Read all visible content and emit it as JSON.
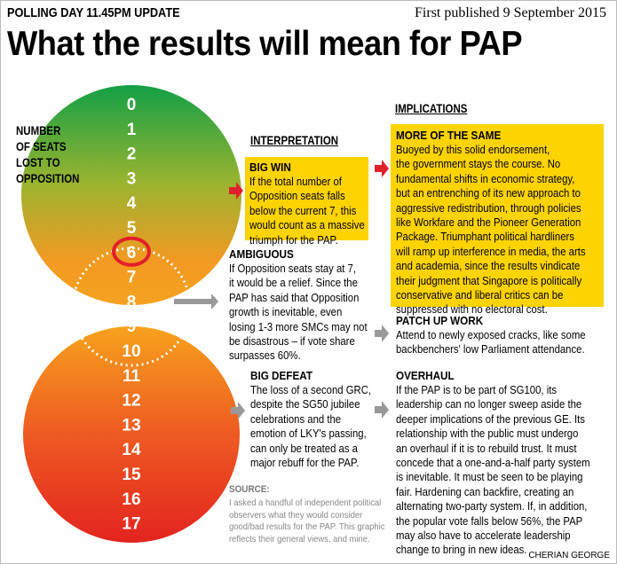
{
  "header": {
    "kicker": "POLLING DAY  11.45PM  UPDATE",
    "date": "First published 9 September 2015",
    "title": "What the results will mean for PAP"
  },
  "axis_label": [
    "NUMBER",
    "OF SEATS",
    "LOST TO",
    "OPPOSITION"
  ],
  "seats": [
    0,
    1,
    2,
    3,
    4,
    5,
    6,
    7,
    8,
    9,
    10,
    11,
    12,
    13,
    14,
    15,
    16,
    17
  ],
  "highlighted_seat": 6,
  "interpretation": {
    "heading": "INTERPRETATION",
    "items": [
      {
        "title": "BIG WIN",
        "lines": [
          "If the total number of",
          "Opposition seats falls",
          "below the current 7, this",
          "would count as a massive",
          "triumph for the PAP."
        ]
      },
      {
        "title": "AMBIGUOUS",
        "lines": [
          "If Opposition seats stay at 7,",
          "it would be a relief. Since the",
          "PAP has said that Opposition",
          "growth is inevitable, even",
          "losing 1-3 more SMCs may not",
          "be disastrous – if vote share",
          "surpasses 60%."
        ]
      },
      {
        "title": "BIG DEFEAT",
        "lines": [
          "The loss of a second GRC,",
          "despite the SG50 jubilee",
          "celebrations and the",
          "emotion of LKY's passing,",
          "can only be treated as a",
          "major rebuff for the PAP."
        ]
      }
    ]
  },
  "implications": {
    "heading": "IMPLICATIONS",
    "items": [
      {
        "title": "MORE OF THE SAME",
        "lines": [
          "Buoyed by this solid endorsement,",
          "the government stays the course. No",
          "fundamental shifts in economic strategy,",
          "but an entrenching of its new approach to",
          "aggressive redistribution, through policies",
          "like Workfare and the Pioneer Generation",
          "Package. Triumphant political hardliners",
          "will ramp up interference in media, the arts",
          "and academia, since the results vindicate",
          "their judgment that Singapore is politically",
          "conservative and liberal critics can be",
          "suppressed with no electoral cost."
        ]
      },
      {
        "title": "PATCH UP WORK",
        "lines": [
          "Attend to newly exposed cracks, like some",
          "backbenchers' low Parliament attendance."
        ]
      },
      {
        "title": "OVERHAUL",
        "lines": [
          "If the PAP is to be part of SG100, its",
          "leadership can no longer sweep aside the",
          "deeper implications of the previous GE. Its",
          "relationship with the public must undergo",
          "an overhaul if it is to rebuild trust. It must",
          "concede that a one-and-a-half party system",
          "is inevitable. It must be seen to be playing",
          "fair. Hardening can backfire, creating an",
          "alternating two-party system. If, in addition,",
          "the popular vote falls below 56%, the PAP",
          "may also have to accelerate leadership",
          "change to bring in new ideas."
        ]
      }
    ]
  },
  "source": {
    "title": "SOURCE:",
    "lines": [
      "I asked a handful of independent political",
      "observers what they would consider",
      "good/bad results for the PAP. This graphic",
      "reflects their general views, and mine."
    ]
  },
  "credit": "CHERIAN GEORGE"
}
